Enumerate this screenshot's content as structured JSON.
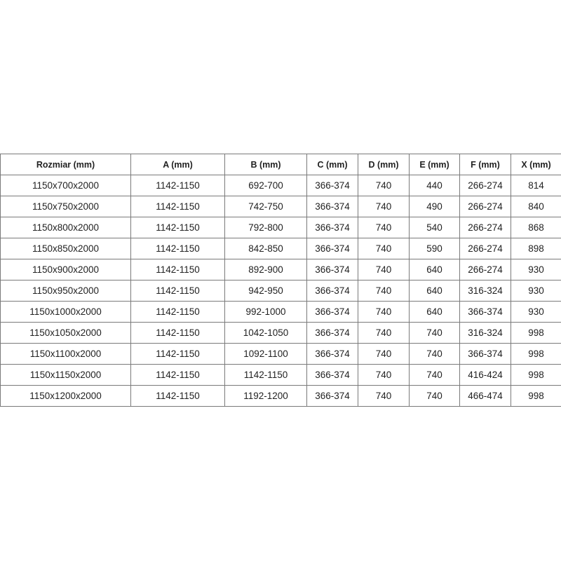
{
  "table": {
    "headers": [
      "Rozmiar (mm)",
      "A (mm)",
      "B (mm)",
      "C (mm)",
      "D (mm)",
      "E (mm)",
      "F (mm)",
      "X (mm)"
    ],
    "rows": [
      [
        "1150x700x2000",
        "1142-1150",
        "692-700",
        "366-374",
        "740",
        "440",
        "266-274",
        "814"
      ],
      [
        "1150x750x2000",
        "1142-1150",
        "742-750",
        "366-374",
        "740",
        "490",
        "266-274",
        "840"
      ],
      [
        "1150x800x2000",
        "1142-1150",
        "792-800",
        "366-374",
        "740",
        "540",
        "266-274",
        "868"
      ],
      [
        "1150x850x2000",
        "1142-1150",
        "842-850",
        "366-374",
        "740",
        "590",
        "266-274",
        "898"
      ],
      [
        "1150x900x2000",
        "1142-1150",
        "892-900",
        "366-374",
        "740",
        "640",
        "266-274",
        "930"
      ],
      [
        "1150x950x2000",
        "1142-1150",
        "942-950",
        "366-374",
        "740",
        "640",
        "316-324",
        "930"
      ],
      [
        "1150x1000x2000",
        "1142-1150",
        "992-1000",
        "366-374",
        "740",
        "640",
        "366-374",
        "930"
      ],
      [
        "1150x1050x2000",
        "1142-1150",
        "1042-1050",
        "366-374",
        "740",
        "740",
        "316-324",
        "998"
      ],
      [
        "1150x1100x2000",
        "1142-1150",
        "1092-1100",
        "366-374",
        "740",
        "740",
        "366-374",
        "998"
      ],
      [
        "1150x1150x2000",
        "1142-1150",
        "1142-1150",
        "366-374",
        "740",
        "740",
        "416-424",
        "998"
      ],
      [
        "1150x1200x2000",
        "1142-1150",
        "1192-1200",
        "366-374",
        "740",
        "740",
        "466-474",
        "998"
      ]
    ]
  }
}
